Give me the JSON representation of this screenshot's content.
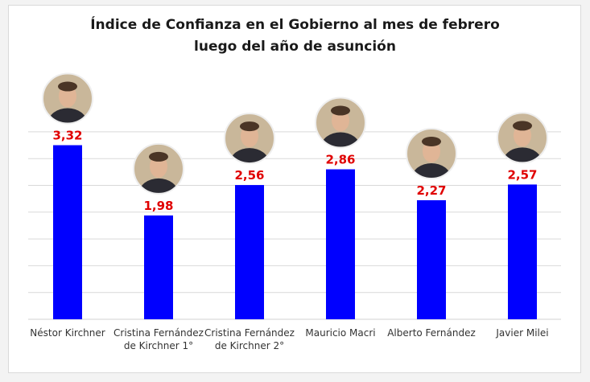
{
  "title_line1": "Índice de Confianza en el Gobierno al mes de febrero",
  "title_line2": "luego del año de asunción",
  "chart_data": {
    "type": "bar",
    "categories": [
      "Néstor Kirchner",
      "Cristina Fernández de Kirchner 1°",
      "Cristina Fernández de Kirchner 2°",
      "Mauricio Macri",
      "Alberto Fernández",
      "Javier Milei"
    ],
    "category_lines": [
      [
        "Néstor Kirchner"
      ],
      [
        "Cristina Fernández",
        "de Kirchner 1°"
      ],
      [
        "Cristina Fernández",
        "de Kirchner 2°"
      ],
      [
        "Mauricio Macri"
      ],
      [
        "Alberto Fernández"
      ],
      [
        "Javier Milei"
      ]
    ],
    "values": [
      3.32,
      1.98,
      2.56,
      2.86,
      2.27,
      2.57
    ],
    "value_labels": [
      "3,32",
      "1,98",
      "2,56",
      "2,86",
      "2,27",
      "2,57"
    ],
    "ylim": [
      0,
      4
    ],
    "grid": true,
    "legend": "none",
    "photos": [
      "president-photo",
      "president-photo",
      "president-photo",
      "president-photo",
      "president-photo",
      "president-photo"
    ],
    "colors": {
      "bar": "#0000ff",
      "value_label": "#e00000",
      "grid": "#d9d9d9"
    }
  }
}
